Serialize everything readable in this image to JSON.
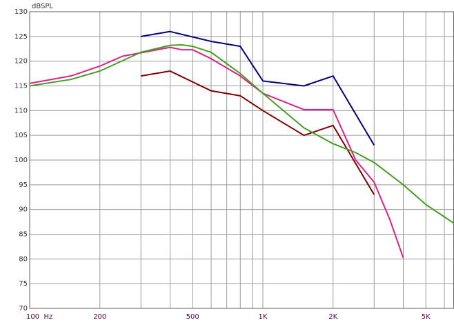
{
  "chart_data": {
    "type": "line",
    "y_axis_label": "dBSPL",
    "log_x": true,
    "grid": true,
    "xlim": [
      100,
      6600
    ],
    "ylim": [
      70,
      130
    ],
    "xticks": [
      {
        "value": 100,
        "label": "100  Hz"
      },
      {
        "value": 200,
        "label": "200"
      },
      {
        "value": 500,
        "label": "500"
      },
      {
        "value": 1000,
        "label": "1K"
      },
      {
        "value": 2000,
        "label": "2K"
      },
      {
        "value": 5000,
        "label": "5K"
      }
    ],
    "x_minor_ticks": [
      300,
      400,
      600,
      700,
      800,
      900,
      3000,
      4000,
      6000
    ],
    "yticks": [
      70,
      75,
      80,
      85,
      90,
      95,
      100,
      105,
      110,
      115,
      120,
      125,
      130
    ],
    "series": [
      {
        "color": "#000080",
        "x": [
          300,
          400,
          600,
          800,
          1000,
          1500,
          2000,
          3000
        ],
        "values": [
          125,
          126,
          124,
          123,
          116,
          115,
          117,
          103
        ]
      },
      {
        "color": "#800000",
        "x": [
          300,
          400,
          600,
          800,
          1000,
          1500,
          2000,
          3000
        ],
        "values": [
          117,
          118,
          114,
          113,
          110,
          105,
          107,
          93
        ]
      },
      {
        "color": "#e0208a",
        "x": [
          100,
          150,
          200,
          250,
          300,
          400,
          450,
          500,
          600,
          800,
          1000,
          1500,
          2000,
          2500,
          3000,
          3500,
          4000
        ],
        "values": [
          115.5,
          117,
          119,
          121,
          121.7,
          122.8,
          122.3,
          122.3,
          120.5,
          117,
          113.5,
          110.2,
          110.2,
          100,
          95.5,
          88,
          80.2
        ]
      },
      {
        "color": "#40a020",
        "x": [
          100,
          150,
          200,
          300,
          400,
          450,
          500,
          600,
          800,
          1000,
          1500,
          2000,
          2500,
          3000,
          4000,
          5000,
          6600
        ],
        "values": [
          115,
          116.3,
          118,
          121.8,
          123.2,
          123.3,
          123,
          121.8,
          117.5,
          113.5,
          106.5,
          103.3,
          101.5,
          99.5,
          95,
          91,
          87.2
        ]
      }
    ]
  }
}
